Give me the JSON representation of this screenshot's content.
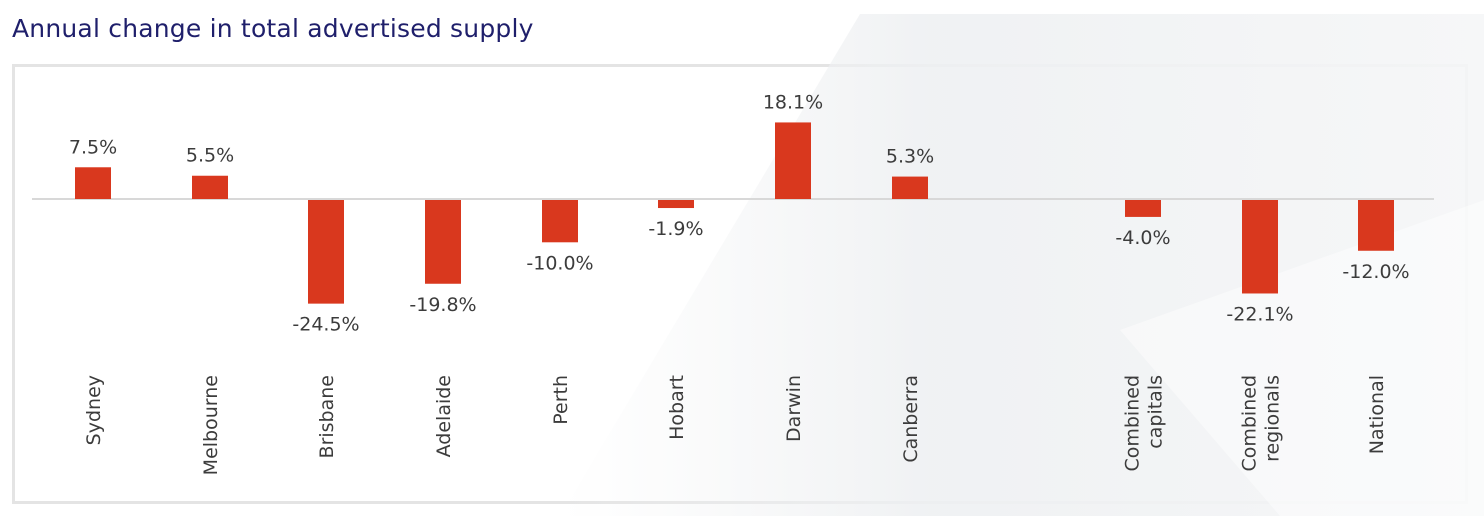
{
  "chart_data": {
    "type": "bar",
    "title": "Annual change in total advertised supply",
    "categories": [
      [
        "Sydney"
      ],
      [
        "Melbourne"
      ],
      [
        "Brisbane"
      ],
      [
        "Adelaide"
      ],
      [
        "Perth"
      ],
      [
        "Hobart"
      ],
      [
        "Darwin"
      ],
      [
        "Canberra"
      ],
      [
        "Combined",
        "capitals"
      ],
      [
        "Combined",
        "regionals"
      ],
      [
        "National"
      ]
    ],
    "values": [
      7.5,
      5.5,
      -24.5,
      -19.8,
      -10.0,
      -1.9,
      18.1,
      5.3,
      -4.0,
      -22.1,
      -12.0
    ],
    "labels": [
      "7.5%",
      "5.5%",
      "-24.5%",
      "-19.8%",
      "-10.0%",
      "-1.9%",
      "18.1%",
      "5.3%",
      "-4.0%",
      "-22.1%",
      "-12.0%"
    ],
    "unit": "%",
    "xlabel": "",
    "ylabel": "",
    "grid": false,
    "bar_color": "#d9381e"
  }
}
